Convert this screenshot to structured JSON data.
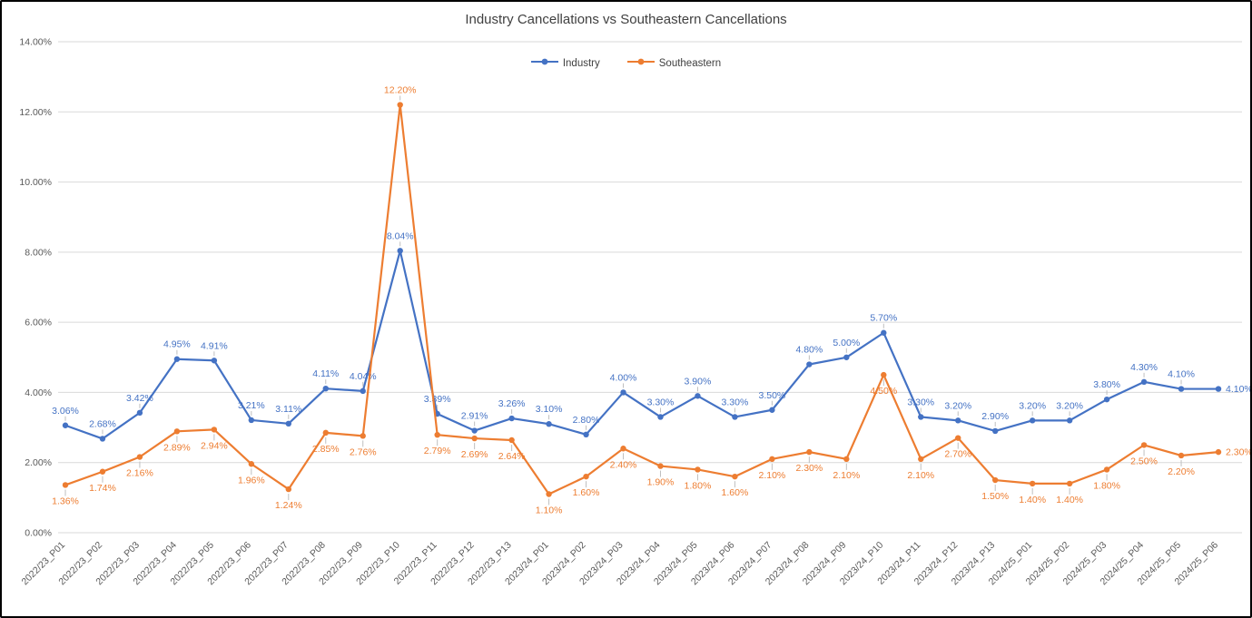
{
  "chart_data": {
    "type": "line",
    "title": "Industry Cancellations vs Southeastern Cancellations",
    "legend_position": "top",
    "grid": true,
    "ylim": [
      0,
      14
    ],
    "ytick_step": 2,
    "ytick_labels": [
      "0.00%",
      "2.00%",
      "4.00%",
      "6.00%",
      "8.00%",
      "10.00%",
      "12.00%",
      "14.00%"
    ],
    "gridline_color": "#D9D9D9",
    "axis_label_color": "#595959",
    "leader_line_color": "#BFBFBF",
    "title_color": "#404040",
    "categories": [
      "2022/23_P01",
      "2022/23_P02",
      "2022/23_P03",
      "2022/23_P04",
      "2022/23_P05",
      "2022/23_P06",
      "2022/23_P07",
      "2022/23_P08",
      "2022/23_P09",
      "2022/23_P10",
      "2022/23_P11",
      "2022/23_P12",
      "2022/23_P13",
      "2023/24_P01",
      "2023/24_P02",
      "2023/24_P03",
      "2023/24_P04",
      "2023/24_P05",
      "2023/24_P06",
      "2023/24_P07",
      "2023/24_P08",
      "2023/24_P09",
      "2023/24_P10",
      "2023/24_P11",
      "2023/24_P12",
      "2023/24_P13",
      "2024/25_P01",
      "2024/25_P02",
      "2024/25_P03",
      "2024/25_P04",
      "2024/25_P05",
      "2024/25_P06"
    ],
    "series": [
      {
        "name": "Industry",
        "color": "#4472C4",
        "values": [
          3.06,
          2.68,
          3.42,
          4.95,
          4.91,
          3.21,
          3.11,
          4.11,
          4.04,
          8.04,
          3.39,
          2.91,
          3.26,
          3.1,
          2.8,
          4.0,
          3.3,
          3.9,
          3.3,
          3.5,
          4.8,
          5.0,
          5.7,
          3.3,
          3.2,
          2.9,
          3.2,
          3.2,
          3.8,
          4.3,
          4.1,
          4.1
        ],
        "labels": [
          "3.06%",
          "2.68%",
          "3.42%",
          "4.95%",
          "4.91%",
          "3.21%",
          "3.11%",
          "4.11%",
          "4.04%",
          "8.04%",
          "3.39%",
          "2.91%",
          "3.26%",
          "3.10%",
          "2.80%",
          "4.00%",
          "3.30%",
          "3.90%",
          "3.30%",
          "3.50%",
          "4.80%",
          "5.00%",
          "5.70%",
          "3.30%",
          "3.20%",
          "2.90%",
          "3.20%",
          "3.20%",
          "3.80%",
          "4.30%",
          "4.10%",
          "4.10%"
        ]
      },
      {
        "name": "Southeastern",
        "color": "#ED7D31",
        "values": [
          1.36,
          1.74,
          2.16,
          2.89,
          2.94,
          1.96,
          1.24,
          2.85,
          2.76,
          12.2,
          2.79,
          2.69,
          2.64,
          1.1,
          1.6,
          2.4,
          1.9,
          1.8,
          1.6,
          2.1,
          2.3,
          2.1,
          4.5,
          2.1,
          2.7,
          1.5,
          1.4,
          1.4,
          1.8,
          2.5,
          2.2,
          2.3
        ],
        "labels": [
          "1.36%",
          "1.74%",
          "2.16%",
          "2.89%",
          "2.94%",
          "1.96%",
          "1.24%",
          "2.85%",
          "2.76%",
          "12.20%",
          "2.79%",
          "2.69%",
          "2.64%",
          "1.10%",
          "1.60%",
          "2.40%",
          "1.90%",
          "1.80%",
          "1.60%",
          "2.10%",
          "2.30%",
          "2.10%",
          "4.50%",
          "2.10%",
          "2.70%",
          "1.50%",
          "1.40%",
          "1.40%",
          "1.80%",
          "2.50%",
          "2.20%",
          "2.30%"
        ]
      }
    ]
  }
}
